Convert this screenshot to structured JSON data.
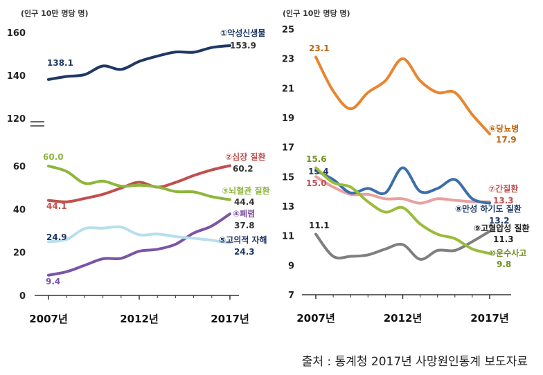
{
  "source_note": "출처 : 통계청 2017년 사망원인통계 보도자료",
  "chart_data": [
    {
      "type": "line",
      "unit_label": "(인구 10만 명당 명)",
      "axis_break_between": [
        60,
        120
      ],
      "y_ticks": [
        "0",
        "20",
        "40",
        "60",
        "120",
        "140",
        "160"
      ],
      "x_ticks": [
        "2007년",
        "2012년",
        "2017년"
      ],
      "years": [
        2007,
        2008,
        2009,
        2010,
        2011,
        2012,
        2013,
        2014,
        2015,
        2016,
        2017
      ],
      "grid": false,
      "series": [
        {
          "name": "①악성신생물",
          "color": "#1f3864",
          "values": [
            138.1,
            139.5,
            140.4,
            144.4,
            142.8,
            146.5,
            149.0,
            150.9,
            150.8,
            153.0,
            153.9
          ],
          "start_label": "138.1",
          "end_label": "153.9"
        },
        {
          "name": "②심장 질환",
          "color": "#c0504d",
          "values": [
            44.1,
            43.4,
            45.0,
            46.9,
            49.8,
            52.5,
            50.2,
            52.4,
            55.6,
            58.2,
            60.2
          ],
          "start_label": "44.1",
          "end_label": "60.2"
        },
        {
          "name": "③뇌혈관 질환",
          "color": "#8db63c",
          "values": [
            60.0,
            57.5,
            52.0,
            53.0,
            50.7,
            51.1,
            50.3,
            48.2,
            48.0,
            45.8,
            44.4
          ],
          "start_label": "60.0",
          "end_label": "44.4"
        },
        {
          "name": "④폐렴",
          "color": "#7b54a6",
          "values": [
            9.4,
            11.0,
            14.0,
            17.0,
            17.2,
            20.5,
            21.4,
            23.7,
            28.9,
            32.2,
            37.8
          ],
          "start_label": "9.4",
          "end_label": "37.8"
        },
        {
          "name": "⑤고의적 자해",
          "color": "#b7dfec",
          "values": [
            24.9,
            26.0,
            31.0,
            31.2,
            31.7,
            28.1,
            28.5,
            27.3,
            26.5,
            25.6,
            24.3
          ],
          "start_label": "24.9",
          "end_label": "24.3"
        }
      ]
    },
    {
      "type": "line",
      "unit_label": "(인구 10만 명당 명)",
      "y_ticks": [
        "7",
        "9",
        "11",
        "13",
        "15",
        "17",
        "19",
        "21",
        "23",
        "25"
      ],
      "ylim": [
        7,
        25
      ],
      "x_ticks": [
        "2007년",
        "2012년",
        "2017년"
      ],
      "years": [
        2007,
        2008,
        2009,
        2010,
        2011,
        2012,
        2013,
        2014,
        2015,
        2016,
        2017
      ],
      "grid": false,
      "series": [
        {
          "name": "⑥당뇨병",
          "color": "#e8852f",
          "values": [
            23.1,
            20.8,
            19.6,
            20.7,
            21.5,
            23.0,
            21.5,
            20.7,
            20.7,
            19.2,
            17.9
          ],
          "start_label": "23.1",
          "end_label": "17.9"
        },
        {
          "name": "⑦간질환",
          "color": "#e8a0a0",
          "values": [
            15.0,
            14.3,
            13.8,
            13.8,
            13.5,
            13.5,
            13.2,
            13.5,
            13.4,
            13.3,
            13.3
          ],
          "start_label": "15.0",
          "end_label": "13.3"
        },
        {
          "name": "⑧만성 하기도 질환",
          "color": "#3b6eac",
          "values": [
            15.4,
            14.8,
            13.9,
            14.2,
            13.9,
            15.6,
            14.0,
            14.2,
            14.8,
            13.5,
            13.2
          ],
          "start_label": "15.4",
          "end_label": "13.2"
        },
        {
          "name": "⑨고혈압성 질환",
          "color": "#7f7f7f",
          "values": [
            11.1,
            9.6,
            9.6,
            9.7,
            10.1,
            10.4,
            9.4,
            10.0,
            10.0,
            10.6,
            11.3
          ],
          "start_label": "11.1",
          "end_label": "11.3"
        },
        {
          "name": "⑩운수사고",
          "color": "#9bbb3c",
          "values": [
            15.6,
            14.6,
            14.3,
            13.3,
            12.6,
            12.9,
            11.8,
            11.1,
            10.8,
            10.1,
            9.8
          ],
          "start_label": "15.6",
          "end_label": "9.8"
        }
      ]
    }
  ]
}
